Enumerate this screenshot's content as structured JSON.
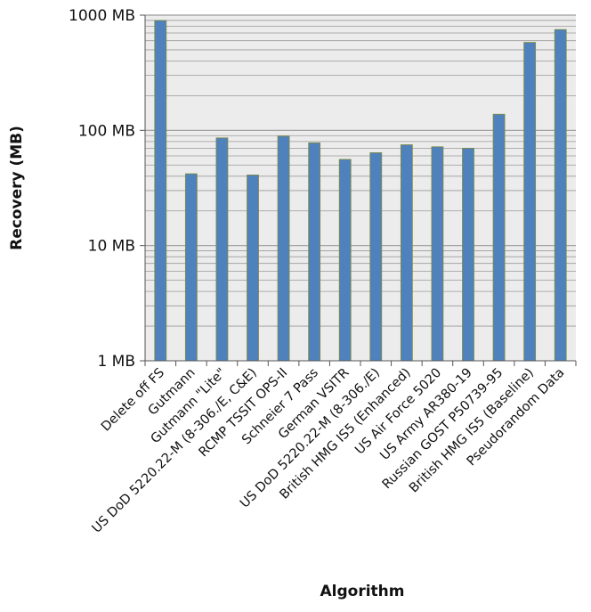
{
  "chart_data": {
    "type": "bar",
    "xlabel": "Algorithm",
    "ylabel": "Recovery (MB)",
    "yscale": "log",
    "ylim": [
      1,
      1000
    ],
    "yticks": [
      {
        "value": 1,
        "label": "1 MB"
      },
      {
        "value": 10,
        "label": "10 MB"
      },
      {
        "value": 100,
        "label": "100 MB"
      },
      {
        "value": 1000,
        "label": "1000 MB"
      }
    ],
    "grid": true,
    "legend": "none",
    "categories": [
      "Delete off FS",
      "Gutmann",
      "Gutmann \"Lite\"",
      "US DoD 5220.22-M (8-306./E, C&E)",
      "RCMP TSSIT OPS-II",
      "Schneier 7 Pass",
      "German VSITR",
      "US DoD 5220.22-M (8-306./E)",
      "British HMG IS5 (Enhanced)",
      "US Air Force 5020",
      "US Army AR380-19",
      "Russian GOST P50739-95",
      "British HMG IS5 (Baseline)",
      "Pseudorandom Data"
    ],
    "values": [
      900,
      42,
      86,
      41,
      89,
      78,
      56,
      64,
      75,
      72,
      70,
      138,
      580,
      750
    ],
    "colors": {
      "bar": "#4f81bd",
      "bar_edge": "#7f8c3a",
      "plot_bg": "#ececec",
      "grid": "#9a9a9a",
      "axis": "#555555"
    }
  }
}
